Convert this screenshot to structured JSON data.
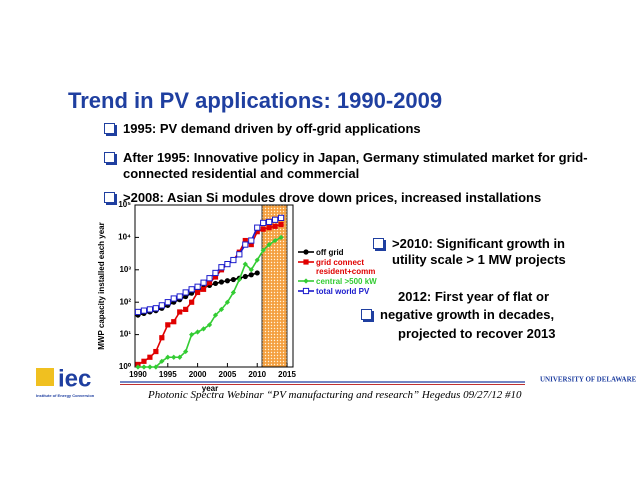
{
  "title": "Trend in PV applications: 1990-2009",
  "bullets": [
    "1995: PV demand driven by off-grid applications",
    "After 1995: Innovative policy in Japan, Germany stimulated market for grid-connected residential and commercial",
    ">2008: Asian Si modules drove down prices, increased installations"
  ],
  "side_bullets": [
    ">2010: Significant growth in utility scale > 1 MW projects",
    "2012: First year of flat or",
    "negative growth in decades,",
    "projected to recover 2013"
  ],
  "footer": "Photonic Spectra Webinar “PV manufacturing and research” Hegedus 09/27/12  #10",
  "logos": {
    "left": "iec",
    "left_sub": "Institute of Energy Conversion",
    "right": "UNIVERSITY OF DELAWARE"
  },
  "chart_data": {
    "type": "line",
    "xlabel": "year",
    "ylabel": "MWP capacity installed each year",
    "log_y": true,
    "x": [
      1990,
      1991,
      1992,
      1993,
      1994,
      1995,
      1996,
      1997,
      1998,
      1999,
      2000,
      2001,
      2002,
      2003,
      2004,
      2005,
      2006,
      2007,
      2008,
      2009,
      2010,
      2011,
      2012,
      2013,
      2014
    ],
    "xlim": [
      1989.5,
      2016
    ],
    "xticks": [
      1990,
      1995,
      2000,
      2005,
      2010,
      2015
    ],
    "ylim": [
      1,
      100000
    ],
    "yticks": [
      {
        "value": 1,
        "label": "10⁰"
      },
      {
        "value": 10,
        "label": "10¹"
      },
      {
        "value": 100,
        "label": "10²"
      },
      {
        "value": 1000,
        "label": "10³"
      },
      {
        "value": 10000,
        "label": "10⁴"
      },
      {
        "value": 100000,
        "label": "10⁵"
      }
    ],
    "series": [
      {
        "name": "off grid",
        "color": "#000000",
        "marker": "circle",
        "values": [
          40,
          45,
          50,
          55,
          65,
          80,
          100,
          120,
          150,
          190,
          230,
          280,
          330,
          380,
          420,
          460,
          500,
          550,
          620,
          700,
          800,
          null,
          null,
          null,
          null
        ]
      },
      {
        "name": "grid connect resident+comm",
        "color": "#e00000",
        "marker": "square",
        "values": [
          1.2,
          1.5,
          2,
          3,
          8,
          20,
          25,
          50,
          60,
          100,
          200,
          250,
          400,
          600,
          1000,
          1500,
          2000,
          3500,
          8000,
          6000,
          15000,
          18000,
          20000,
          22000,
          25000
        ]
      },
      {
        "name": "central >500 kW",
        "color": "#33cc33",
        "marker": "diamond",
        "values": [
          1,
          1,
          1,
          1,
          1.5,
          2,
          2,
          2,
          3,
          10,
          12,
          15,
          20,
          40,
          60,
          100,
          200,
          500,
          1500,
          1000,
          2000,
          4000,
          6000,
          8000,
          10000
        ]
      },
      {
        "name": "total world PV",
        "color": "#1a1acc",
        "marker": "open-square",
        "values": [
          50,
          55,
          60,
          65,
          80,
          100,
          130,
          150,
          200,
          250,
          300,
          400,
          550,
          800,
          1200,
          1500,
          2000,
          3000,
          6000,
          8000,
          20000,
          28000,
          30000,
          35000,
          40000
        ]
      }
    ]
  }
}
